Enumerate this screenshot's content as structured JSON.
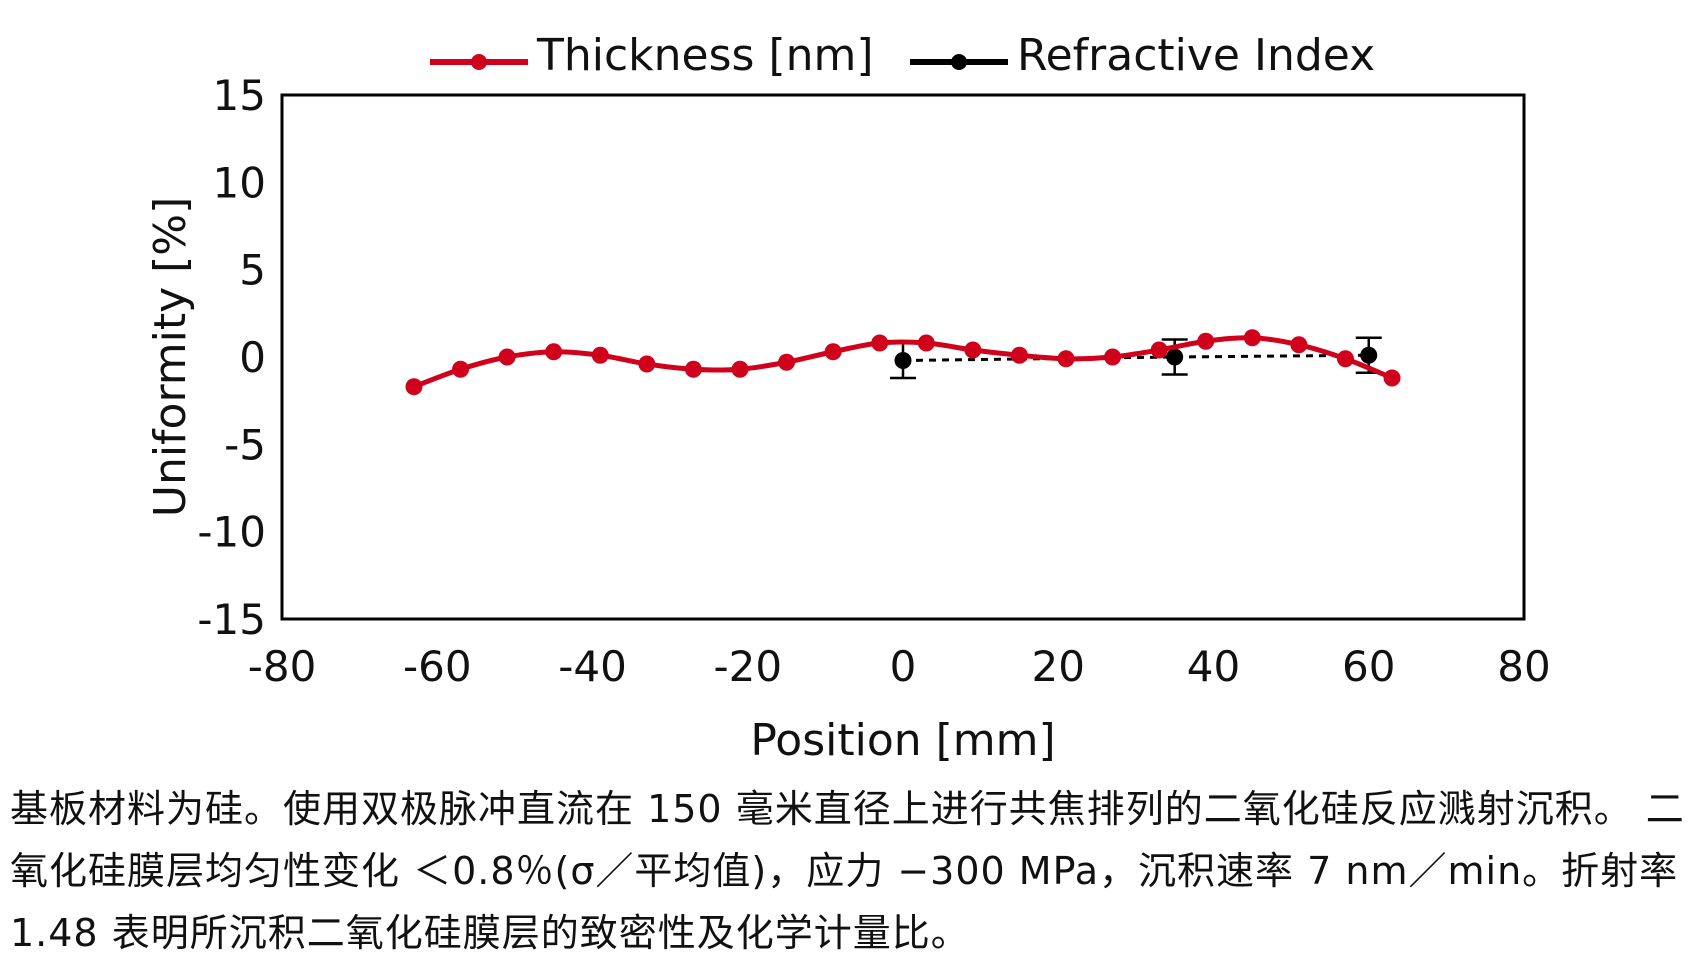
{
  "chart_data": {
    "type": "line",
    "xlabel": "Position [mm]",
    "ylabel": "Uniformity [%]",
    "xlim": [
      -80,
      80
    ],
    "ylim": [
      -15,
      15
    ],
    "xticks": [
      -80,
      -60,
      -40,
      -20,
      0,
      20,
      40,
      60,
      80
    ],
    "yticks": [
      -15,
      -10,
      -5,
      0,
      5,
      10,
      15
    ],
    "xtick_labels": [
      "-80",
      "-60",
      "-40",
      "-20",
      "0",
      "20",
      "40",
      "60",
      "80"
    ],
    "ytick_labels": [
      "-15",
      "-10",
      "-5",
      "0",
      "5",
      "10",
      "15"
    ],
    "legend_position": "top",
    "series": [
      {
        "name": "Thickness [nm]",
        "color": "#d0021b",
        "line_style": "solid",
        "marker": "circle",
        "x": [
          -63,
          -57,
          -51,
          -45,
          -39,
          -33,
          -27,
          -21,
          -15,
          -9,
          -3,
          3,
          9,
          15,
          21,
          27,
          33,
          39,
          45,
          51,
          57,
          63
        ],
        "y": [
          -1.7,
          -0.7,
          0.0,
          0.3,
          0.1,
          -0.4,
          -0.7,
          -0.7,
          -0.3,
          0.3,
          0.8,
          0.8,
          0.4,
          0.1,
          -0.1,
          0.0,
          0.4,
          0.9,
          1.1,
          0.7,
          -0.1,
          -1.2
        ]
      },
      {
        "name": "Refractive Index",
        "color": "#000000",
        "line_style": "dashed",
        "marker": "circle",
        "x": [
          0,
          35,
          60
        ],
        "y": [
          -0.2,
          0.0,
          0.1
        ],
        "error": [
          1.0,
          1.0,
          1.0
        ]
      }
    ]
  },
  "caption": {
    "text": "基板材料为硅。使用双极脉冲直流在 150 毫米直径上进行共焦排列的二氧化硅反应溅射沉积。 二氧化硅膜层均匀性变化 ＜0.8％(σ／平均值)，应力 −300 MPa，沉积速率 7 nm／min。折射率 1.48 表明所沉积二氧化硅膜层的致密性及化学计量比。"
  }
}
